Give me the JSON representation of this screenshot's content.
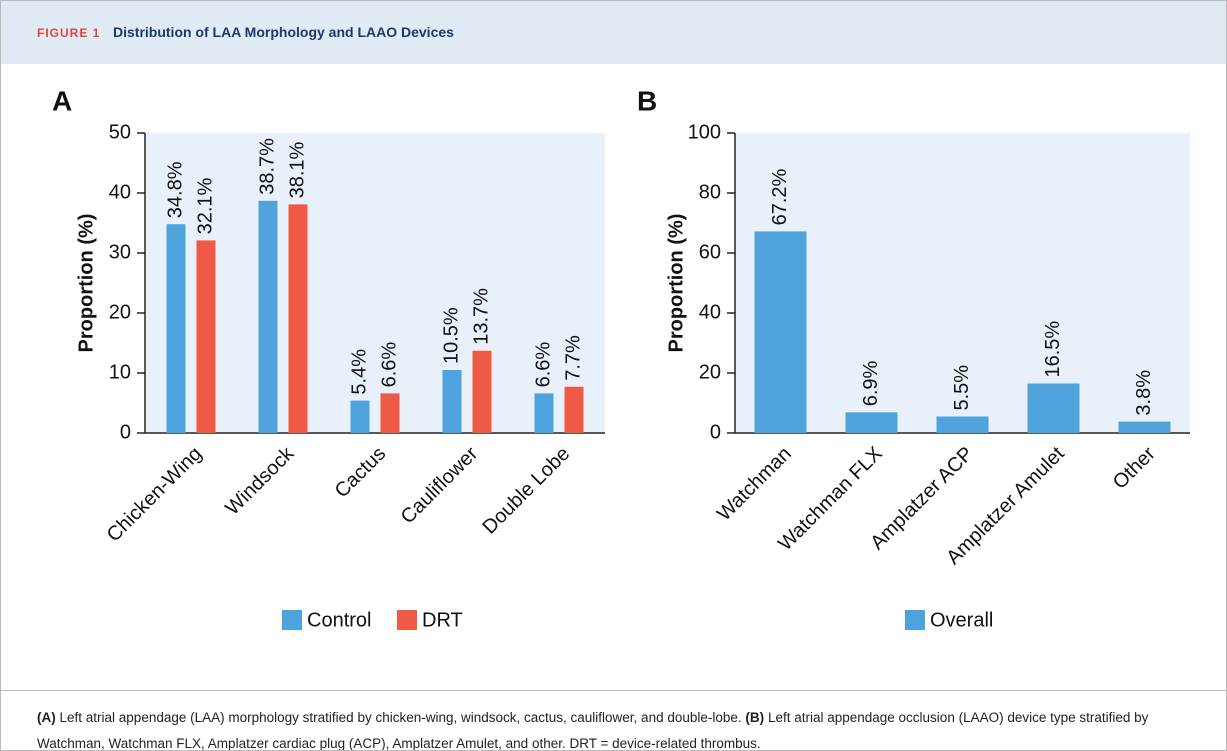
{
  "figure": {
    "label": "FIGURE 1",
    "title": "Distribution of LAA Morphology and LAAO Devices",
    "caption": [
      {
        "label": "(A)",
        "text": "Left atrial appendage (LAA) morphology stratified by chicken-wing, windsock, cactus, cauliflower, and double-lobe."
      },
      {
        "label": "(B)",
        "text": "Left atrial appendage occlusion (LAAO) device type stratified by Watchman, Watchman FLX, Amplatzer cardiac plug (ACP), Amplatzer Amulet, and other. DRT = device-related thrombus."
      }
    ]
  },
  "chart_data": [
    {
      "type": "bar",
      "panel": "A",
      "y_label": "Proportion (%)",
      "categories": [
        "Chicken-Wing",
        "Windsock",
        "Cactus",
        "Cauliflower",
        "Double Lobe"
      ],
      "series": [
        {
          "name": "Control",
          "color": "#4fa3dc",
          "values": [
            34.8,
            38.7,
            5.4,
            10.5,
            6.6
          ],
          "value_labels": [
            "34.8%",
            "38.7%",
            "5.4%",
            "10.5%",
            "6.6%"
          ]
        },
        {
          "name": "DRT",
          "color": "#ee5a45",
          "values": [
            32.1,
            38.1,
            6.6,
            13.7,
            7.7
          ],
          "value_labels": [
            "32.1%",
            "38.1%",
            "6.6%",
            "13.7%",
            "7.7%"
          ]
        }
      ],
      "ylim": [
        0,
        50
      ],
      "yticks": [
        0,
        10,
        20,
        30,
        40,
        50
      ],
      "legend": "bottom"
    },
    {
      "type": "bar",
      "panel": "B",
      "y_label": "Proportion (%)",
      "categories": [
        "Watchman",
        "Watchman FLX",
        "Amplatzer ACP",
        "Amplatzer Amulet",
        "Other"
      ],
      "series": [
        {
          "name": "Overall",
          "color": "#4fa3dc",
          "values": [
            67.2,
            6.9,
            5.5,
            16.5,
            3.8
          ],
          "value_labels": [
            "67.2%",
            "6.9%",
            "5.5%",
            "16.5%",
            "3.8%"
          ]
        }
      ],
      "ylim": [
        0,
        100
      ],
      "yticks": [
        0,
        20,
        40,
        60,
        80,
        100
      ],
      "legend": "bottom"
    }
  ]
}
